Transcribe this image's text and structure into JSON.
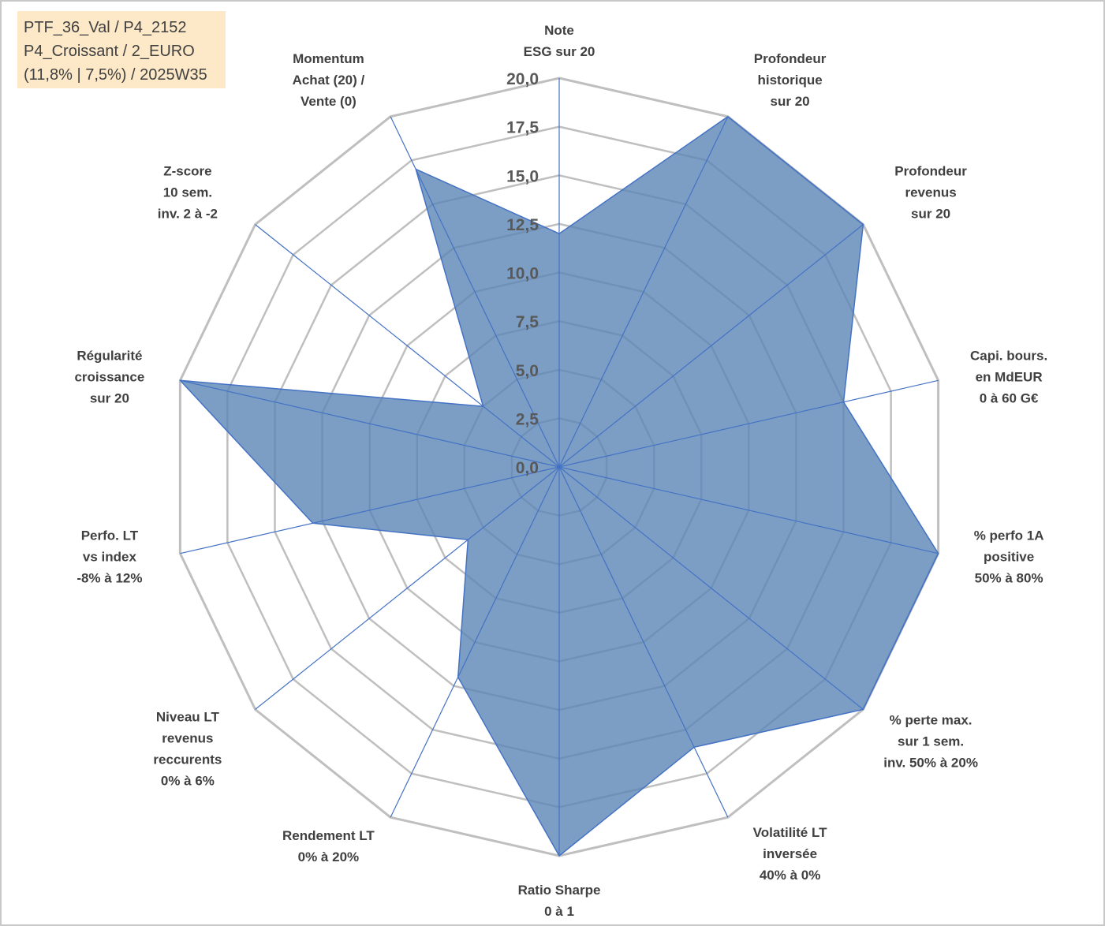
{
  "info_box": {
    "line1": "PTF_36_Val / P4_2152",
    "line2": "P4_Croissant / 2_EURO",
    "line3": "(11,8% | 7,5%) / 2025W35"
  },
  "colors": {
    "fill": "#5b86b7",
    "line": "#4472c4",
    "grid": "#bfbfbf",
    "text": "#404040",
    "info_box_bg": "#fde9c8"
  },
  "chart_data": {
    "type": "radar",
    "rmax": 20,
    "ticks": [
      "0,0",
      "2,5",
      "5,0",
      "7,5",
      "10,0",
      "12,5",
      "15,0",
      "17,5",
      "20,0"
    ],
    "axes": [
      {
        "lines": [
          "Note",
          "ESG sur 20"
        ],
        "value": 12
      },
      {
        "lines": [
          "Profondeur",
          "historique",
          "sur 20"
        ],
        "value": 20
      },
      {
        "lines": [
          "Profondeur",
          "revenus",
          "sur 20"
        ],
        "value": 20
      },
      {
        "lines": [
          "Capi. bours.",
          "en MdEUR",
          "0 à 60 G€"
        ],
        "value": 15
      },
      {
        "lines": [
          "% perfo 1A",
          "positive",
          "50% à 80%"
        ],
        "value": 20
      },
      {
        "lines": [
          "% perte max.",
          "sur 1 sem.",
          "inv. 50% à 20%"
        ],
        "value": 20
      },
      {
        "lines": [
          "Volatilité LT",
          "inversée",
          "40% à 0%"
        ],
        "value": 16
      },
      {
        "lines": [
          "Ratio Sharpe",
          "0 à 1"
        ],
        "value": 20
      },
      {
        "lines": [
          "Rendement LT",
          "0% à 20%"
        ],
        "value": 12
      },
      {
        "lines": [
          "Niveau LT",
          "revenus",
          "reccurents",
          "0% à 6%"
        ],
        "value": 6
      },
      {
        "lines": [
          "Perfo. LT",
          "vs index",
          "-8% à 12%"
        ],
        "value": 13
      },
      {
        "lines": [
          "Régularité",
          "croissance",
          "sur 20"
        ],
        "value": 20
      },
      {
        "lines": [
          "Z-score",
          "10 sem.",
          "inv. 2 à -2"
        ],
        "value": 5
      },
      {
        "lines": [
          "Momentum",
          "Achat (20) /",
          "Vente (0)"
        ],
        "value": 17
      }
    ]
  }
}
